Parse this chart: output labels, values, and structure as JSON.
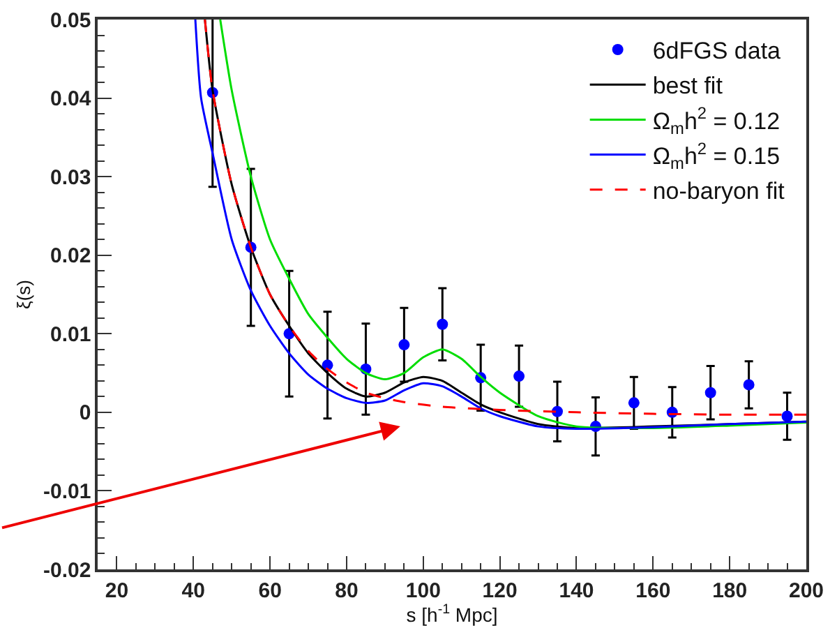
{
  "chart_data": {
    "type": "scatter",
    "xlabel": "s [h$^{-1}$ Mpc]",
    "ylabel": "ξ(s)",
    "x": [
      45,
      55,
      65,
      75,
      85,
      95,
      105,
      115,
      125,
      135,
      145,
      155,
      165,
      175,
      185,
      195
    ],
    "series": [
      {
        "name": "6dFGS data",
        "color": "#0000ff",
        "marker": "circle",
        "values": [
          0.0407,
          0.021,
          0.01,
          0.006,
          0.0055,
          0.0086,
          0.0112,
          0.0044,
          0.0046,
          0.0001,
          -0.0018,
          0.0012,
          0.0,
          0.0025,
          0.0035,
          -0.0005
        ],
        "errors": [
          0.012,
          0.01,
          0.008,
          0.0068,
          0.0058,
          0.0047,
          0.0046,
          0.0042,
          0.0039,
          0.0038,
          0.0037,
          0.0033,
          0.0032,
          0.0034,
          0.003,
          0.003
        ]
      },
      {
        "name": "best fit",
        "type": "line",
        "color": "#000000",
        "line_style": "solid",
        "x": [
          43,
          45,
          50,
          55,
          60,
          65,
          70,
          75,
          80,
          85,
          90,
          95,
          100,
          105,
          110,
          115,
          120,
          130,
          140,
          160,
          180,
          200
        ],
        "values": [
          0.05,
          0.041,
          0.029,
          0.021,
          0.015,
          0.011,
          0.0075,
          0.005,
          0.003,
          0.002,
          0.0025,
          0.0038,
          0.0045,
          0.004,
          0.0025,
          0.001,
          0.0,
          -0.0015,
          -0.002,
          -0.0018,
          -0.0015,
          -0.0012
        ]
      },
      {
        "name": "Ω$_{m}$h$^{2}$ = 0.12",
        "type": "line",
        "color": "#00dd00",
        "line_style": "solid",
        "x": [
          47,
          50,
          55,
          60,
          65,
          70,
          75,
          80,
          85,
          90,
          95,
          100,
          105,
          110,
          115,
          120,
          130,
          140,
          160,
          180,
          200
        ],
        "values": [
          0.05,
          0.041,
          0.03,
          0.022,
          0.017,
          0.0125,
          0.0095,
          0.0068,
          0.005,
          0.0042,
          0.005,
          0.007,
          0.008,
          0.0068,
          0.0045,
          0.0025,
          -0.0005,
          -0.0018,
          -0.002,
          -0.0017,
          -0.0013
        ]
      },
      {
        "name": "Ω$_{m}$h$^{2}$ = 0.15",
        "type": "line",
        "color": "#0000ff",
        "line_style": "solid",
        "x": [
          40.5,
          42,
          45,
          50,
          55,
          60,
          65,
          70,
          75,
          80,
          85,
          90,
          95,
          100,
          105,
          110,
          115,
          120,
          130,
          140,
          160,
          180,
          200
        ],
        "values": [
          0.05,
          0.04,
          0.033,
          0.022,
          0.0155,
          0.011,
          0.0075,
          0.0048,
          0.003,
          0.0018,
          0.0012,
          0.0015,
          0.0028,
          0.0037,
          0.0033,
          0.002,
          0.0005,
          -0.0005,
          -0.0018,
          -0.0021,
          -0.0019,
          -0.0015,
          -0.0012
        ]
      },
      {
        "name": "no-baryon fit",
        "type": "line",
        "color": "#ff0000",
        "line_style": "dashed",
        "x": [
          43,
          45,
          50,
          55,
          60,
          65,
          70,
          75,
          80,
          85,
          90,
          95,
          105,
          120,
          140,
          160,
          180,
          200
        ],
        "values": [
          0.05,
          0.041,
          0.029,
          0.021,
          0.015,
          0.011,
          0.0078,
          0.0055,
          0.0038,
          0.0025,
          0.0018,
          0.0013,
          0.0007,
          0.0003,
          0.0,
          -0.0002,
          -0.0003,
          -0.0003
        ]
      }
    ],
    "xlim": [
      15,
      200
    ],
    "xticks": [
      20,
      40,
      60,
      80,
      100,
      120,
      140,
      160,
      180,
      200
    ],
    "ylim": [
      -0.02,
      0.05
    ],
    "yticks": [
      -0.02,
      -0.01,
      0,
      0.01,
      0.02,
      0.03,
      0.04,
      0.05
    ],
    "grid": false,
    "legend": "top right"
  }
}
